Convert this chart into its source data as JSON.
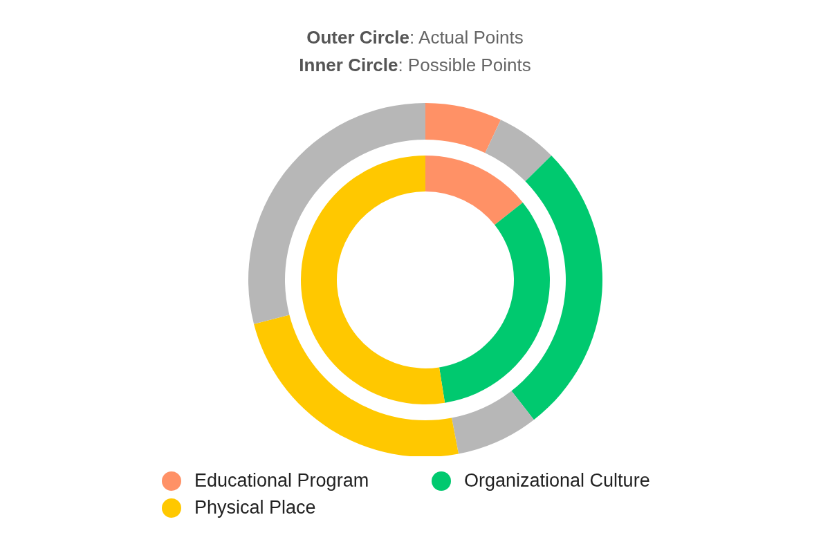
{
  "chart_data": {
    "type": "donut",
    "title": "Outer Circle: Actual Points",
    "subtitle": "Inner Circle: Possible Points",
    "categories": [
      "Educational Program",
      null,
      "Organizational Culture",
      null,
      "Physical Place",
      null
    ],
    "colors": [
      "#ff9166",
      "#b7b7b7",
      "#00c96f",
      "#b7b7b7",
      "#ffc800",
      "#b7b7b7"
    ],
    "series": [
      {
        "values": [
          7,
          5.6,
          26.9,
          7.5,
          24,
          29
        ]
      },
      {
        "values": [
          14.3,
          null,
          33.2,
          null,
          52.5,
          null
        ]
      }
    ],
    "legend": "bottom"
  }
}
